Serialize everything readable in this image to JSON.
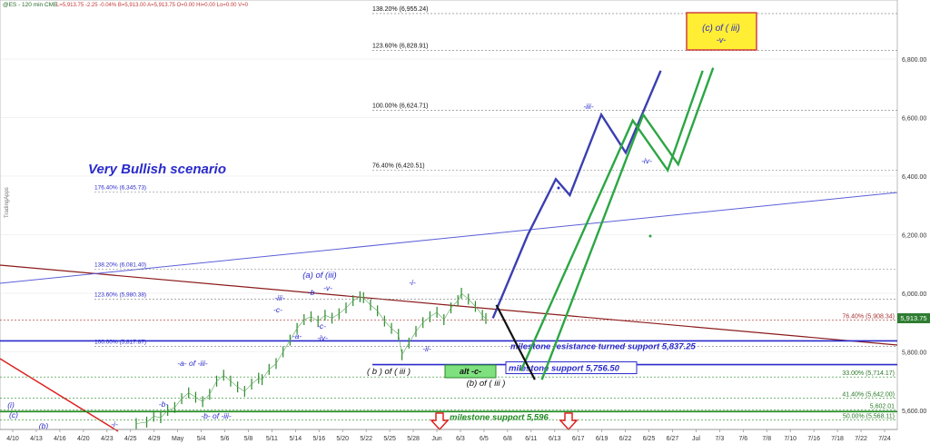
{
  "header": {
    "symbol": "@ES - 120 min CME",
    "quote": "L=5,913.75  -2.25  -0.04%  B=5,913.00  A=5,913.75  O=0.00  Hi=0.00  Lo=0.00  V=0"
  },
  "watermark": "TradingApps",
  "chart_data": {
    "type": "line",
    "title": "",
    "scenario_label": "Very Bullish scenario",
    "xlabel": "",
    "ylabel": "",
    "ylim": [
      5560,
      6980
    ],
    "y_ticks": [
      5600,
      5800,
      6000,
      6200,
      6400,
      6600,
      6800
    ],
    "y_tick_labels": [
      "5,600.00",
      "5,800.00",
      "6,000.00",
      "6,200.00",
      "6,400.00",
      "6,600.00",
      "6,800.00"
    ],
    "x_tick_labels": [
      "4/10",
      "4/13",
      "4/16",
      "4/20",
      "4/23",
      "4/25",
      "4/29",
      "May",
      "5/4",
      "5/6",
      "5/8",
      "5/11",
      "5/14",
      "5/16",
      "5/20",
      "5/22",
      "5/25",
      "5/28",
      "Jun",
      "6/3",
      "6/5",
      "6/8",
      "6/11",
      "6/13",
      "6/17",
      "6/19",
      "6/22",
      "6/25",
      "6/27",
      "Jul",
      "7/3",
      "7/6",
      "7/8",
      "7/10",
      "7/16",
      "7/18",
      "7/22",
      "7/24"
    ],
    "last_price_label": "5,913.75",
    "price_series": [
      [
        0.0,
        5555
      ],
      [
        0.3,
        5560
      ],
      [
        0.5,
        5580
      ],
      [
        0.7,
        5575
      ],
      [
        0.9,
        5600
      ],
      [
        1.1,
        5610
      ],
      [
        1.3,
        5640
      ],
      [
        1.5,
        5660
      ],
      [
        1.7,
        5645
      ],
      [
        1.9,
        5630
      ],
      [
        2.1,
        5655
      ],
      [
        2.3,
        5700
      ],
      [
        2.5,
        5720
      ],
      [
        2.7,
        5700
      ],
      [
        2.9,
        5680
      ],
      [
        3.1,
        5665
      ],
      [
        3.3,
        5690
      ],
      [
        3.5,
        5710
      ],
      [
        3.6,
        5705
      ],
      [
        3.8,
        5740
      ],
      [
        4.0,
        5760
      ],
      [
        4.2,
        5800
      ],
      [
        4.4,
        5840
      ],
      [
        4.6,
        5880
      ],
      [
        4.8,
        5910
      ],
      [
        5.0,
        5920
      ],
      [
        5.2,
        5905
      ],
      [
        5.4,
        5925
      ],
      [
        5.6,
        5915
      ],
      [
        5.8,
        5930
      ],
      [
        6.0,
        5950
      ],
      [
        6.2,
        5975
      ],
      [
        6.4,
        5988
      ],
      [
        6.5,
        5985
      ],
      [
        6.7,
        5960
      ],
      [
        6.9,
        5940
      ],
      [
        7.1,
        5905
      ],
      [
        7.3,
        5880
      ],
      [
        7.5,
        5860
      ],
      [
        7.6,
        5790
      ],
      [
        7.8,
        5830
      ],
      [
        8.0,
        5870
      ],
      [
        8.2,
        5900
      ],
      [
        8.4,
        5920
      ],
      [
        8.6,
        5935
      ],
      [
        8.8,
        5910
      ],
      [
        9.0,
        5950
      ],
      [
        9.2,
        5975
      ],
      [
        9.3,
        6000
      ],
      [
        9.5,
        5980
      ],
      [
        9.7,
        5955
      ],
      [
        9.9,
        5925
      ],
      [
        10.0,
        5913.75
      ]
    ],
    "projections": [
      {
        "name": "main",
        "color": "#3b3fb0",
        "points": [
          [
            10.2,
            5915
          ],
          [
            11.2,
            6200
          ],
          [
            12.0,
            6390
          ],
          [
            12.4,
            6335
          ],
          [
            13.3,
            6610
          ],
          [
            14.0,
            6480
          ],
          [
            15.0,
            6760
          ]
        ]
      },
      {
        "name": "alt-a",
        "color": "#2ca644",
        "points": [
          [
            11.0,
            5735
          ],
          [
            14.2,
            6590
          ],
          [
            15.2,
            6420
          ],
          [
            16.2,
            6760
          ]
        ]
      },
      {
        "name": "alt-b",
        "color": "#2ca644",
        "points": [
          [
            11.6,
            5705
          ],
          [
            14.5,
            6610
          ],
          [
            15.5,
            6440
          ],
          [
            16.5,
            6770
          ]
        ]
      },
      {
        "name": "connector",
        "color": "#111111",
        "points": [
          [
            10.3,
            5960
          ],
          [
            11.4,
            5705
          ]
        ]
      }
    ],
    "fib_levels": [
      {
        "label": "138.20% (6,955.24)",
        "value": 6955.24
      },
      {
        "label": "123.60% (6,828.91)",
        "value": 6828.91
      },
      {
        "label": "100.00% (6,624.71)",
        "value": 6624.71
      },
      {
        "label": "76.40% (6,420.51)",
        "value": 6420.51
      },
      {
        "label": "176.40% (6,345.73)",
        "value": 6345.73
      },
      {
        "label": "138.20% (6,081.40)",
        "value": 6081.4
      },
      {
        "label": "123.60% (5,980.38)",
        "value": 5980.38
      },
      {
        "label": "100.00% (5,817.87)",
        "value": 5817.87
      }
    ],
    "right_levels": [
      {
        "label": "76.40% (5,908.34)",
        "value": 5908.34
      },
      {
        "label": "33.00% (5,714.17)",
        "value": 5714.17
      },
      {
        "label": "41.40% (5,642.00)",
        "value": 5642.0
      },
      {
        "label": "5,602.01",
        "value": 5602.01
      },
      {
        "label": "50.00% (5,568.11)",
        "value": 5568.11
      }
    ],
    "milestones": [
      {
        "label": "milestone resistance turned support 5,837.25",
        "value": 5837.25
      },
      {
        "label": "milestone support 5,756.50",
        "value": 5756.5
      },
      {
        "label": "milestone support 5,596",
        "value": 5596
      }
    ],
    "wave_labels": [
      "-i-",
      "-b-",
      "-a- of -iii-",
      "-b- of -iii-",
      "-iii-",
      "-c-",
      "-a-",
      "-b-",
      "-v-",
      "-c-",
      "-iv-",
      "(a) of (iii)",
      "( b ) of ( iii )",
      "-i-",
      "-ii-",
      "-iii-",
      "-iv-",
      "(b) of ( iii )",
      "(i)",
      "(c)",
      "(b)"
    ],
    "alt_box_label": "alt -c-",
    "target_box": {
      "line1": "(c) of ( iii)",
      "line2": "-v-"
    }
  }
}
